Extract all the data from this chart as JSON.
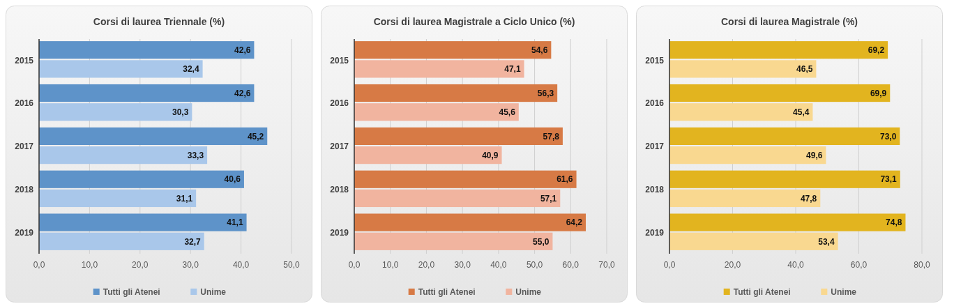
{
  "chart_data": [
    {
      "type": "bar",
      "orientation": "horizontal",
      "title": "Corsi di laurea Triennale (%)",
      "categories": [
        "2015",
        "2016",
        "2017",
        "2018",
        "2019"
      ],
      "series": [
        {
          "name": "Tutti gli Atenei",
          "color": "#5e93c9",
          "values": [
            42.6,
            42.6,
            45.2,
            40.6,
            41.1
          ],
          "value_labels": [
            "42,6",
            "42,6",
            "45,2",
            "40,6",
            "41,1"
          ]
        },
        {
          "name": "Unime",
          "color": "#a9c7ea",
          "values": [
            32.4,
            30.3,
            33.3,
            31.1,
            32.7
          ],
          "value_labels": [
            "32,4",
            "30,3",
            "33,3",
            "31,1",
            "32,7"
          ]
        }
      ],
      "xlim": [
        0,
        50
      ],
      "xticks": [
        {
          "value": 0,
          "label": "0,0"
        },
        {
          "value": 10,
          "label": "10,0"
        },
        {
          "value": 20,
          "label": "20,0"
        },
        {
          "value": 30,
          "label": "30,0"
        },
        {
          "value": 40,
          "label": "40,0"
        },
        {
          "value": 50,
          "label": "50,0"
        }
      ],
      "grid": "x",
      "legend": "bottom"
    },
    {
      "type": "bar",
      "orientation": "horizontal",
      "title": "Corsi di laurea Magistrale a Ciclo Unico (%)",
      "categories": [
        "2015",
        "2016",
        "2017",
        "2018",
        "2019"
      ],
      "series": [
        {
          "name": "Tutti gli Atenei",
          "color": "#d77a45",
          "values": [
            54.6,
            56.3,
            57.8,
            61.6,
            64.2
          ],
          "value_labels": [
            "54,6",
            "56,3",
            "57,8",
            "61,6",
            "64,2"
          ]
        },
        {
          "name": "Unime",
          "color": "#f1b49f",
          "values": [
            47.1,
            45.6,
            40.9,
            57.1,
            55.0
          ],
          "value_labels": [
            "47,1",
            "45,6",
            "40,9",
            "57,1",
            "55,0"
          ]
        }
      ],
      "xlim": [
        0,
        70
      ],
      "xticks": [
        {
          "value": 0,
          "label": "0,0"
        },
        {
          "value": 10,
          "label": "10,0"
        },
        {
          "value": 20,
          "label": "20,0"
        },
        {
          "value": 30,
          "label": "30,0"
        },
        {
          "value": 40,
          "label": "40,0"
        },
        {
          "value": 50,
          "label": "50,0"
        },
        {
          "value": 60,
          "label": "60,0"
        },
        {
          "value": 70,
          "label": "70,0"
        }
      ],
      "grid": "x",
      "legend": "bottom"
    },
    {
      "type": "bar",
      "orientation": "horizontal",
      "title": "Corsi di laurea Magistrale (%)",
      "categories": [
        "2015",
        "2016",
        "2017",
        "2018",
        "2019"
      ],
      "series": [
        {
          "name": "Tutti gli Atenei",
          "color": "#e2b41f",
          "values": [
            69.2,
            69.9,
            73.0,
            73.1,
            74.8
          ],
          "value_labels": [
            "69,2",
            "69,9",
            "73,0",
            "73,1",
            "74,8"
          ]
        },
        {
          "name": "Unime",
          "color": "#f9d890",
          "values": [
            46.5,
            45.4,
            49.6,
            47.8,
            53.4
          ],
          "value_labels": [
            "46,5",
            "45,4",
            "49,6",
            "47,8",
            "53,4"
          ]
        }
      ],
      "xlim": [
        0,
        80
      ],
      "xticks": [
        {
          "value": 0,
          "label": "0,0"
        },
        {
          "value": 20,
          "label": "20,0"
        },
        {
          "value": 40,
          "label": "40,0"
        },
        {
          "value": 60,
          "label": "60,0"
        },
        {
          "value": 80,
          "label": "80,0"
        }
      ],
      "grid": "x",
      "legend": "bottom"
    }
  ]
}
